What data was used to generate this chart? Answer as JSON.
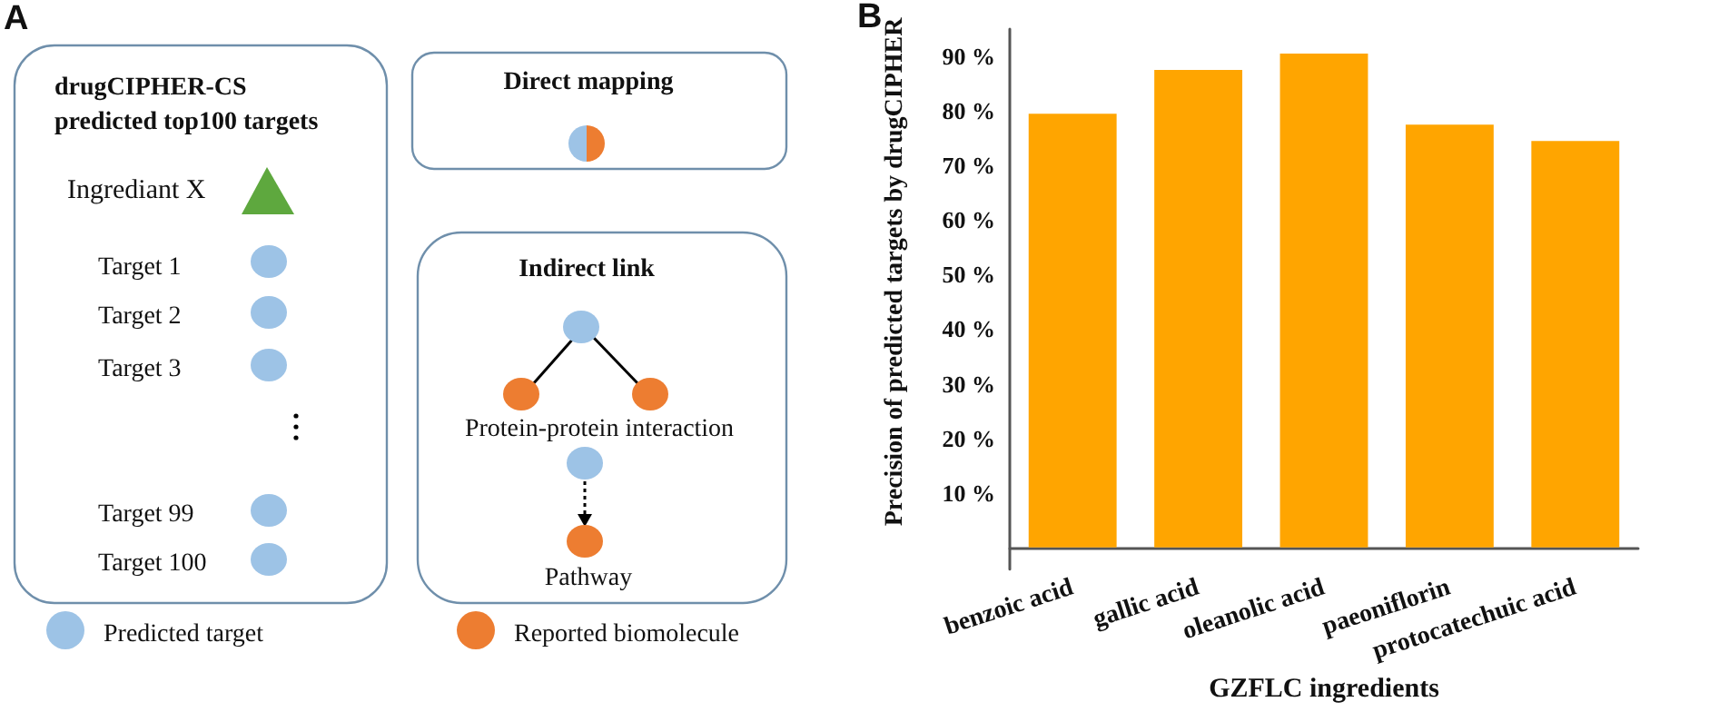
{
  "chart_data": [
    {
      "type": "other",
      "annotations": [
        "A",
        "drugCIPHER-CS\npredicted top100 targets",
        "Ingrediant X",
        "Target 1",
        "Target 2",
        "Target 3",
        "Target 99",
        "Target 100",
        "Direct mapping",
        "Indirect link",
        "Protein-protein interaction",
        "Pathway",
        "Predicted target",
        "Reported biomolecule"
      ]
    },
    {
      "type": "bar",
      "annotations": [
        "B"
      ],
      "categories": [
        "benzoic acid",
        "gallic acid",
        "oleanolic acid",
        "paeoniflorin",
        "protocatechuic acid"
      ],
      "values": [
        79.5,
        87.5,
        90.5,
        77.5,
        74.5
      ],
      "color": "#ffa500",
      "xlabel": "GZFLC ingredients",
      "ylabel": "Precision of predicted targets by drugCIPHER",
      "ylim": [
        -4,
        95
      ],
      "yticks": [
        {
          "value": 10,
          "label": "10 %"
        },
        {
          "value": 20,
          "label": "20 %"
        },
        {
          "value": 30,
          "label": "30 %"
        },
        {
          "value": 40,
          "label": "40 %"
        },
        {
          "value": 50,
          "label": "50 %"
        },
        {
          "value": 60,
          "label": "60 %"
        },
        {
          "value": 70,
          "label": "70 %"
        },
        {
          "value": 80,
          "label": "80 %"
        },
        {
          "value": 90,
          "label": "90 %"
        }
      ],
      "grid": false
    }
  ]
}
